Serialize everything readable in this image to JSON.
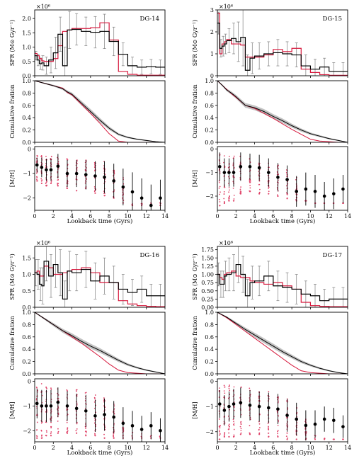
{
  "figure": {
    "colors": {
      "observed": "#000000",
      "model": "#d6183c",
      "error": "#7f7f7f",
      "band": "#bdbdbd",
      "scatter": "#e0456a"
    }
  },
  "chart_data": [
    {
      "type": "line",
      "galaxy": "DG-14",
      "xlabel": "Lookback time (Gyrs)",
      "xlim": [
        0,
        14
      ],
      "x_ticks": [
        0,
        2,
        4,
        6,
        8,
        10,
        12,
        14
      ],
      "sfr": {
        "ylabel": "SFR (M⊙ Gyr⁻¹)",
        "multiplier": "×10⁶",
        "ylim": [
          0,
          2.3
        ],
        "y_ticks": [
          0.0,
          0.5,
          1.0,
          1.5,
          2.0
        ],
        "bin_edges": [
          0,
          0.25,
          0.5,
          0.75,
          1.0,
          1.5,
          2.0,
          2.5,
          3.0,
          3.5,
          4.0,
          5.0,
          6.0,
          7.0,
          8.0,
          9.0,
          10.0,
          11.0,
          12.0,
          13.0,
          14.0
        ],
        "observed": [
          0.7,
          0.55,
          0.42,
          0.45,
          0.35,
          0.55,
          0.8,
          1.45,
          0.35,
          1.6,
          1.62,
          1.55,
          1.52,
          1.55,
          1.2,
          0.75,
          0.35,
          0.3,
          0.32,
          0.3
        ],
        "observed_err": [
          0.15,
          0.2,
          0.2,
          0.25,
          0.3,
          0.45,
          0.55,
          0.6,
          0.65,
          0.65,
          0.55,
          0.5,
          0.55,
          0.6,
          0.5,
          0.4,
          0.3,
          0.25,
          0.25,
          0.25
        ],
        "model": [
          0.78,
          0.7,
          0.6,
          0.52,
          0.5,
          0.5,
          0.6,
          1.05,
          1.55,
          1.6,
          1.65,
          1.65,
          1.68,
          1.85,
          1.25,
          0.15,
          0.05,
          0.02,
          0.02,
          0.02
        ]
      },
      "cumulative": {
        "ylabel": "Cumulative fration",
        "ylim": [
          0,
          1.0
        ],
        "y_ticks": [
          0.0,
          0.2,
          0.4,
          0.6,
          0.8,
          1.0
        ],
        "x": [
          0,
          1,
          2,
          3,
          3.5,
          4,
          5,
          6,
          7,
          8,
          9,
          10,
          11,
          12,
          13,
          14
        ],
        "observed": [
          1.0,
          0.96,
          0.92,
          0.87,
          0.82,
          0.78,
          0.64,
          0.5,
          0.36,
          0.23,
          0.13,
          0.08,
          0.05,
          0.03,
          0.01,
          0.0
        ],
        "model": [
          1.0,
          0.96,
          0.92,
          0.88,
          0.81,
          0.77,
          0.62,
          0.47,
          0.31,
          0.14,
          0.02,
          0.0,
          0.0,
          0.0,
          0.0,
          0.0
        ]
      },
      "metallicity": {
        "ylabel": "[M/H]",
        "ylim": [
          -2.5,
          0.1
        ],
        "y_ticks": [
          -2,
          -1,
          0
        ],
        "x": [
          0.25,
          0.75,
          1.25,
          1.75,
          2.5,
          3.5,
          4.5,
          5.5,
          6.5,
          7.5,
          8.5,
          9.5,
          10.5,
          11.5,
          12.5,
          13.5
        ],
        "mean": [
          -0.65,
          -0.75,
          -0.85,
          -0.85,
          -0.7,
          -1.0,
          -1.0,
          -1.05,
          -1.1,
          -1.15,
          -1.3,
          -1.55,
          -1.75,
          -2.0,
          -2.3,
          -2.0
        ],
        "err": [
          0.3,
          0.4,
          0.45,
          0.45,
          0.5,
          0.55,
          0.55,
          0.6,
          0.6,
          0.65,
          0.7,
          0.75,
          0.8,
          0.8,
          0.85,
          0.75
        ],
        "scatter_min": [
          -1.3,
          -1.4,
          -1.5,
          -1.4,
          -1.5,
          -1.6,
          -1.7,
          -1.6,
          -1.8,
          -1.9,
          -2.0,
          -2.2,
          -2.3,
          -2.3,
          -2.3,
          -2.3
        ],
        "scatter_max": [
          -0.2,
          -0.2,
          -0.3,
          -0.3,
          -0.3,
          -0.4,
          -0.4,
          -0.4,
          -0.5,
          -0.5,
          -0.7,
          -1.1,
          -2.2,
          -2.2,
          -2.2,
          -2.2
        ]
      }
    },
    {
      "type": "line",
      "galaxy": "DG-15",
      "xlabel": "Lookback time (Gyrs)",
      "xlim": [
        0,
        14
      ],
      "x_ticks": [
        0,
        2,
        4,
        6,
        8,
        10,
        12,
        14
      ],
      "sfr": {
        "ylabel": "SFR (M⊙ Gyr⁻¹)",
        "multiplier": "×10⁶",
        "ylim": [
          0,
          3.0
        ],
        "y_ticks": [
          0,
          1,
          2,
          3
        ],
        "bin_edges": [
          0,
          0.25,
          0.5,
          0.75,
          1.0,
          1.5,
          2.0,
          2.5,
          3.0,
          3.5,
          4.0,
          5.0,
          6.0,
          7.0,
          8.0,
          9.0,
          10.0,
          11.0,
          12.0,
          13.0,
          14.0
        ],
        "observed": [
          2.4,
          1.25,
          1.35,
          1.45,
          1.6,
          1.7,
          1.55,
          1.75,
          0.25,
          0.8,
          0.9,
          1.0,
          1.05,
          1.0,
          0.95,
          0.45,
          0.3,
          0.4,
          0.2,
          0.2
        ],
        "observed_err": [
          0.5,
          0.4,
          0.45,
          0.45,
          0.55,
          0.7,
          0.9,
          1.3,
          0.7,
          0.7,
          0.6,
          0.55,
          0.6,
          0.55,
          0.55,
          0.5,
          0.45,
          0.4,
          0.4,
          0.4
        ],
        "model": [
          2.85,
          1.0,
          1.45,
          1.55,
          1.65,
          1.45,
          1.45,
          1.4,
          0.85,
          0.85,
          0.85,
          0.95,
          1.2,
          1.1,
          1.25,
          0.3,
          0.15,
          0.05,
          0.02,
          0.02
        ]
      },
      "cumulative": {
        "ylabel": "Cumulative fration",
        "ylim": [
          0,
          1.0
        ],
        "y_ticks": [
          0.0,
          0.2,
          0.4,
          0.6,
          0.8,
          1.0
        ],
        "x": [
          0,
          0.5,
          1,
          1.5,
          2,
          3,
          4,
          5,
          6,
          7,
          8,
          9,
          10,
          11,
          12,
          13,
          14
        ],
        "observed": [
          1.0,
          0.93,
          0.85,
          0.8,
          0.74,
          0.6,
          0.56,
          0.5,
          0.42,
          0.35,
          0.27,
          0.2,
          0.14,
          0.1,
          0.06,
          0.03,
          0.0
        ],
        "model": [
          1.0,
          0.93,
          0.86,
          0.79,
          0.73,
          0.6,
          0.55,
          0.47,
          0.39,
          0.3,
          0.21,
          0.13,
          0.05,
          0.02,
          0.01,
          0.0,
          0.0
        ]
      },
      "metallicity": {
        "ylabel": "[M/H]",
        "ylim": [
          -2.6,
          0.1
        ],
        "y_ticks": [
          -2,
          -1,
          0
        ],
        "x": [
          0.25,
          0.75,
          1.25,
          1.75,
          2.5,
          3.5,
          4.5,
          5.5,
          6.5,
          7.5,
          8.5,
          9.5,
          10.5,
          11.5,
          12.5,
          13.5
        ],
        "mean": [
          -0.75,
          -1.0,
          -1.0,
          -1.0,
          -0.75,
          -0.75,
          -0.8,
          -1.0,
          -1.2,
          -1.3,
          -1.8,
          -1.7,
          -1.8,
          -2.0,
          -1.9,
          -1.7
        ],
        "err": [
          0.6,
          0.6,
          0.6,
          0.6,
          0.6,
          0.55,
          0.55,
          0.6,
          0.6,
          0.6,
          0.65,
          0.7,
          0.7,
          0.6,
          0.65,
          0.6
        ],
        "scatter_min": [
          -2.4,
          -2.3,
          -2.2,
          -2.2,
          -1.9,
          -1.8,
          -1.9,
          -1.9,
          -2.0,
          -2.1,
          -2.2,
          -2.2,
          -2.3,
          -2.3,
          -2.3,
          -2.3
        ],
        "scatter_max": [
          -0.1,
          -0.2,
          -0.3,
          -0.3,
          -0.3,
          -0.4,
          -0.5,
          -0.6,
          -0.6,
          -0.8,
          -1.2,
          -2.2,
          -2.3,
          -2.3,
          -2.3,
          -2.3
        ]
      }
    },
    {
      "type": "line",
      "galaxy": "DG-16",
      "xlabel": "Lookback time (Gyrs)",
      "xlim": [
        0,
        14
      ],
      "x_ticks": [
        0,
        2,
        4,
        6,
        8,
        10,
        12,
        14
      ],
      "sfr": {
        "ylabel": "SFR (M⊙ Gyr⁻¹)",
        "multiplier": "×10⁶",
        "ylim": [
          0,
          1.85
        ],
        "y_ticks": [
          0.0,
          0.5,
          1.0,
          1.5
        ],
        "bin_edges": [
          0,
          0.25,
          0.5,
          0.75,
          1.0,
          1.5,
          2.0,
          2.5,
          3.0,
          3.5,
          4.0,
          5.0,
          6.0,
          7.0,
          8.0,
          9.0,
          10.0,
          11.0,
          12.0,
          13.0,
          14.0
        ],
        "observed": [
          1.05,
          1.0,
          0.7,
          0.65,
          1.4,
          0.95,
          1.3,
          1.05,
          0.25,
          1.1,
          1.05,
          1.15,
          0.8,
          0.95,
          0.75,
          0.55,
          0.45,
          0.55,
          0.35,
          0.35
        ],
        "observed_err": [
          0.4,
          0.45,
          0.5,
          0.55,
          0.6,
          0.65,
          0.7,
          0.7,
          0.55,
          0.6,
          0.55,
          0.55,
          0.55,
          0.55,
          0.5,
          0.45,
          0.4,
          0.4,
          0.35,
          0.35
        ],
        "model": [
          1.05,
          1.1,
          0.95,
          0.95,
          1.25,
          1.2,
          1.0,
          1.0,
          1.05,
          1.1,
          1.15,
          1.2,
          1.05,
          0.75,
          0.75,
          0.2,
          0.1,
          0.05,
          0.03,
          0.02
        ]
      },
      "cumulative": {
        "ylabel": "Cumulative fration",
        "ylim": [
          0,
          1.0
        ],
        "y_ticks": [
          0.0,
          0.2,
          0.4,
          0.6,
          0.8,
          1.0
        ],
        "x": [
          0,
          1,
          2,
          3,
          4,
          5,
          6,
          7,
          8,
          9,
          10,
          11,
          12,
          13,
          14
        ],
        "observed": [
          1.0,
          0.9,
          0.8,
          0.7,
          0.62,
          0.53,
          0.45,
          0.38,
          0.3,
          0.22,
          0.15,
          0.1,
          0.06,
          0.03,
          0.0
        ],
        "model": [
          1.0,
          0.9,
          0.8,
          0.7,
          0.6,
          0.5,
          0.39,
          0.28,
          0.16,
          0.06,
          0.02,
          0.01,
          0.0,
          0.0,
          0.0
        ]
      },
      "metallicity": {
        "ylabel": "[M/H]",
        "ylim": [
          -2.45,
          0.1
        ],
        "y_ticks": [
          -2,
          -1,
          0
        ],
        "x": [
          0.25,
          0.75,
          1.25,
          1.75,
          2.5,
          3.5,
          4.5,
          5.5,
          6.5,
          7.5,
          8.5,
          9.5,
          10.5,
          11.5,
          12.5,
          13.5
        ],
        "mean": [
          -0.9,
          -1.0,
          -1.0,
          -1.0,
          -0.85,
          -1.0,
          -1.1,
          -1.2,
          -1.4,
          -1.35,
          -1.45,
          -1.7,
          -1.8,
          -1.95,
          -1.8,
          -2.0
        ],
        "err": [
          0.6,
          0.65,
          0.65,
          0.65,
          0.6,
          0.6,
          0.6,
          0.65,
          0.65,
          0.65,
          0.65,
          0.65,
          0.6,
          0.55,
          0.55,
          0.5
        ],
        "scatter_min": [
          -2.3,
          -2.3,
          -2.2,
          -2.2,
          -2.1,
          -2.1,
          -2.1,
          -2.2,
          -2.2,
          -2.3,
          -2.3,
          -2.3,
          -2.3,
          -2.3,
          -2.3,
          -2.3
        ],
        "scatter_max": [
          -0.1,
          -0.1,
          -0.2,
          -0.2,
          -0.2,
          -0.3,
          -0.3,
          -0.4,
          -0.5,
          -0.6,
          -0.9,
          -1.6,
          -2.0,
          -2.1,
          -2.2,
          -2.2
        ]
      }
    },
    {
      "type": "line",
      "galaxy": "DG-17",
      "xlabel": "Lookback time (Gyrs)",
      "xlim": [
        0,
        14
      ],
      "x_ticks": [
        0,
        2,
        4,
        6,
        8,
        10,
        12,
        14
      ],
      "sfr": {
        "ylabel": "SFR (M⊙ Gyr⁻¹)",
        "multiplier": "×10⁶",
        "ylim": [
          0,
          1.85
        ],
        "y_ticks": [
          0.0,
          0.25,
          0.5,
          0.75,
          1.0,
          1.25,
          1.5,
          1.75
        ],
        "bin_edges": [
          0,
          0.25,
          0.5,
          0.75,
          1.0,
          1.5,
          2.0,
          2.5,
          3.0,
          3.5,
          4.0,
          5.0,
          6.0,
          7.0,
          8.0,
          9.0,
          10.0,
          11.0,
          12.0,
          13.0,
          14.0
        ],
        "observed": [
          1.0,
          0.7,
          0.7,
          0.95,
          1.0,
          1.05,
          1.3,
          1.0,
          0.35,
          0.75,
          0.8,
          0.95,
          0.65,
          0.6,
          0.55,
          0.4,
          0.35,
          0.2,
          0.25,
          0.25
        ],
        "observed_err": [
          0.35,
          0.4,
          0.4,
          0.45,
          0.5,
          0.55,
          0.55,
          0.55,
          0.5,
          0.5,
          0.45,
          0.45,
          0.45,
          0.45,
          0.45,
          0.4,
          0.35,
          0.35,
          0.35,
          0.35
        ],
        "model": [
          1.0,
          0.9,
          0.85,
          1.0,
          1.05,
          1.1,
          0.95,
          0.9,
          0.9,
          0.8,
          0.75,
          0.7,
          0.75,
          0.65,
          0.55,
          0.15,
          0.05,
          0.03,
          0.02,
          0.02
        ]
      },
      "cumulative": {
        "ylabel": "Cumulative fration",
        "ylim": [
          0,
          1.0
        ],
        "y_ticks": [
          0.0,
          0.2,
          0.4,
          0.6,
          0.8,
          1.0
        ],
        "x": [
          0,
          1,
          2,
          3,
          4,
          5,
          6,
          7,
          8,
          9,
          10,
          11,
          12,
          13,
          14
        ],
        "observed": [
          1.0,
          0.92,
          0.82,
          0.72,
          0.63,
          0.54,
          0.45,
          0.36,
          0.28,
          0.2,
          0.14,
          0.09,
          0.05,
          0.02,
          0.0
        ],
        "model": [
          1.0,
          0.91,
          0.8,
          0.69,
          0.58,
          0.47,
          0.36,
          0.25,
          0.14,
          0.05,
          0.02,
          0.01,
          0.0,
          0.0,
          0.0
        ]
      },
      "metallicity": {
        "ylabel": "[M/H]",
        "ylim": [
          -2.4,
          0.1
        ],
        "y_ticks": [
          -2,
          -1,
          0
        ],
        "x": [
          0.25,
          0.75,
          1.25,
          1.75,
          2.5,
          3.5,
          4.5,
          5.5,
          6.5,
          7.5,
          8.5,
          9.5,
          10.5,
          11.5,
          12.5,
          13.5
        ],
        "mean": [
          -0.9,
          -1.15,
          -1.0,
          -0.9,
          -0.85,
          -0.95,
          -1.0,
          -1.05,
          -1.1,
          -1.35,
          -1.5,
          -1.75,
          -1.7,
          -1.5,
          -1.55,
          -1.8
        ],
        "err": [
          0.55,
          0.6,
          0.6,
          0.6,
          0.6,
          0.6,
          0.6,
          0.6,
          0.6,
          0.65,
          0.65,
          0.6,
          0.55,
          0.5,
          0.5,
          0.45
        ],
        "scatter_min": [
          -2.3,
          -2.2,
          -2.2,
          -2.2,
          -2.1,
          -2.1,
          -2.1,
          -2.2,
          -2.2,
          -2.3,
          -2.3,
          -2.3,
          -2.3,
          -2.3,
          -2.3,
          -2.3
        ],
        "scatter_max": [
          -0.1,
          -0.1,
          -0.1,
          -0.2,
          -0.2,
          -0.2,
          -0.3,
          -0.4,
          -0.5,
          -0.7,
          -1.0,
          -1.5,
          -2.0,
          -2.2,
          -2.3,
          -2.3
        ]
      }
    }
  ]
}
